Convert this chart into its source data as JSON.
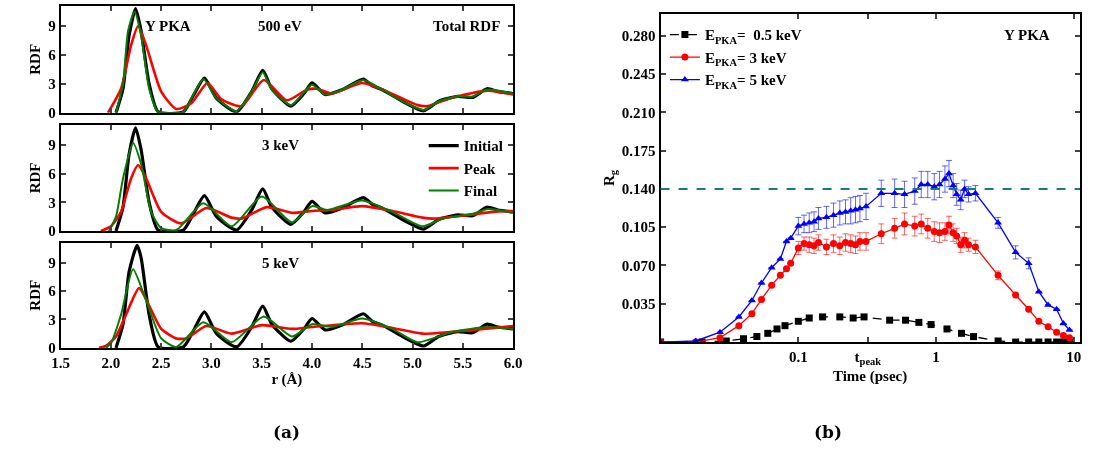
{
  "chart_data": [
    {
      "type": "line",
      "ylabel": "RDF",
      "xlim": [
        1.5,
        6.0
      ],
      "ylim": [
        0,
        11.1
      ],
      "tick_labels": "y",
      "xticks": [
        {
          "value": 1.5,
          "label": null
        },
        {
          "value": 2.0,
          "label": null
        },
        {
          "value": 2.5,
          "label": null
        },
        {
          "value": 3.0,
          "label": null
        },
        {
          "value": 3.5,
          "label": null
        },
        {
          "value": 4.0,
          "label": null
        },
        {
          "value": 4.5,
          "label": null
        },
        {
          "value": 5.0,
          "label": null
        },
        {
          "value": 5.5,
          "label": null
        },
        {
          "value": 6.0,
          "label": null
        }
      ],
      "yticks": [
        0,
        3,
        6,
        9
      ],
      "annotations": [
        "Y PKA",
        "500 eV",
        "Total RDF"
      ],
      "series": [
        {
          "color": "#000000",
          "x": [
            2.05,
            2.12,
            2.18,
            2.245,
            2.3,
            2.38,
            2.47,
            2.72,
            2.82,
            2.93,
            3.05,
            3.25,
            3.4,
            3.51,
            3.6,
            3.79,
            3.92,
            4.0,
            4.13,
            4.3,
            4.51,
            4.6,
            4.7,
            4.9,
            5.11,
            5.26,
            5.45,
            5.6,
            5.74,
            5.85,
            6.0
          ],
          "values": [
            0,
            2.5,
            8.0,
            10.8,
            8.5,
            3.0,
            0.1,
            0.1,
            1.8,
            3.6,
            1.5,
            0.1,
            2.2,
            4.4,
            2.5,
            0.7,
            2.0,
            3.1,
            1.9,
            2.4,
            3.5,
            2.8,
            2.4,
            1.2,
            0.2,
            1.2,
            1.7,
            1.6,
            2.5,
            2.2,
            2.0
          ]
        },
        {
          "color": "#ff0000",
          "x": [
            1.97,
            2.1,
            2.2,
            2.27,
            2.35,
            2.5,
            2.65,
            2.8,
            2.96,
            3.1,
            3.3,
            3.52,
            3.75,
            3.95,
            4.05,
            4.2,
            4.5,
            4.75,
            5.05,
            5.15,
            5.4,
            5.75,
            6.0
          ],
          "values": [
            0,
            2.5,
            7.0,
            9.0,
            7.0,
            2.2,
            0.4,
            1.0,
            3.1,
            1.4,
            0.7,
            3.4,
            1.3,
            2.4,
            2.5,
            2.0,
            3.1,
            2.2,
            0.8,
            0.7,
            1.6,
            2.3,
            1.9
          ]
        },
        {
          "color": "#008000",
          "x": [
            2.05,
            2.12,
            2.17,
            2.235,
            2.3,
            2.38,
            2.47,
            2.72,
            2.82,
            2.92,
            3.05,
            3.25,
            3.4,
            3.51,
            3.6,
            3.79,
            3.92,
            4.0,
            4.13,
            4.3,
            4.51,
            4.7,
            4.9,
            5.11,
            5.26,
            5.45,
            5.6,
            5.74,
            6.0
          ],
          "values": [
            0,
            3.0,
            8.5,
            10.5,
            8.0,
            2.5,
            0.1,
            0.1,
            1.9,
            3.5,
            1.5,
            0.2,
            2.2,
            4.2,
            2.4,
            0.8,
            2.1,
            2.9,
            1.9,
            2.4,
            3.4,
            2.4,
            1.2,
            0.3,
            1.2,
            1.7,
            1.7,
            2.4,
            2.0
          ]
        }
      ]
    },
    {
      "type": "line",
      "ylabel": "RDF",
      "xlim": [
        1.5,
        6.0
      ],
      "ylim": [
        0,
        11.1
      ],
      "tick_labels": "y",
      "legend": "top right",
      "xticks": [
        {
          "value": 1.5,
          "label": null
        },
        {
          "value": 2.0,
          "label": null
        },
        {
          "value": 2.5,
          "label": null
        },
        {
          "value": 3.0,
          "label": null
        },
        {
          "value": 3.5,
          "label": null
        },
        {
          "value": 4.0,
          "label": null
        },
        {
          "value": 4.5,
          "label": null
        },
        {
          "value": 5.0,
          "label": null
        },
        {
          "value": 5.5,
          "label": null
        },
        {
          "value": 6.0,
          "label": null
        }
      ],
      "yticks": [
        0,
        3,
        6,
        9
      ],
      "annotations": [
        "3 keV"
      ],
      "series": [
        {
          "name": "Initial",
          "color": "#000000",
          "x": [
            2.05,
            2.12,
            2.18,
            2.245,
            2.3,
            2.38,
            2.47,
            2.72,
            2.82,
            2.93,
            3.05,
            3.25,
            3.4,
            3.51,
            3.6,
            3.79,
            3.92,
            4.0,
            4.13,
            4.3,
            4.51,
            4.6,
            4.7,
            4.9,
            5.11,
            5.26,
            5.45,
            5.6,
            5.74,
            5.85,
            6.0
          ],
          "values": [
            0,
            2.5,
            8.0,
            10.8,
            8.5,
            3.0,
            0.1,
            0.1,
            1.8,
            3.7,
            1.5,
            0.1,
            2.2,
            4.4,
            2.5,
            0.7,
            2.0,
            3.1,
            1.9,
            2.4,
            3.5,
            2.8,
            2.4,
            1.2,
            0.2,
            1.2,
            1.7,
            1.6,
            2.5,
            2.2,
            2.0
          ]
        },
        {
          "name": "Peak",
          "color": "#ff0000",
          "x": [
            1.9,
            2.0,
            2.1,
            2.2,
            2.27,
            2.35,
            2.5,
            2.7,
            2.95,
            3.2,
            3.3,
            3.55,
            3.8,
            4.0,
            4.2,
            4.5,
            4.8,
            5.1,
            5.2,
            5.5,
            5.8,
            6.0
          ],
          "values": [
            0,
            0.5,
            2.0,
            5.5,
            6.9,
            5.5,
            2.0,
            0.8,
            2.4,
            1.4,
            1.3,
            2.5,
            1.9,
            2.1,
            2.2,
            2.6,
            2.1,
            1.4,
            1.3,
            1.6,
            2.0,
            2.1
          ]
        },
        {
          "name": "Final",
          "color": "#008000",
          "x": [
            1.98,
            2.05,
            2.12,
            2.22,
            2.3,
            2.4,
            2.5,
            2.65,
            2.92,
            3.2,
            3.5,
            3.8,
            4.0,
            4.15,
            4.5,
            4.8,
            5.1,
            5.3,
            5.6,
            5.75,
            6.0
          ],
          "values": [
            0,
            1.5,
            5.5,
            9.2,
            7.0,
            2.0,
            0.3,
            0.1,
            2.9,
            0.5,
            3.6,
            0.9,
            2.6,
            2.2,
            3.2,
            2.0,
            0.5,
            1.3,
            1.8,
            2.3,
            1.9
          ]
        }
      ]
    },
    {
      "type": "line",
      "ylabel": "RDF",
      "xlabel": "r (Å)",
      "xlim": [
        1.5,
        6.0
      ],
      "ylim": [
        0,
        11.1
      ],
      "xticks": [
        1.5,
        {
          "value": 2.0,
          "label": "2.0"
        },
        2.5,
        {
          "value": 3.0,
          "label": "3.0"
        },
        3.5,
        {
          "value": 4.0,
          "label": "4.0"
        },
        4.5,
        {
          "value": 5.0,
          "label": "5.0"
        },
        5.5,
        {
          "value": 6.0,
          "label": "6.0"
        }
      ],
      "yticks": [
        0,
        3,
        6,
        9
      ],
      "annotations": [
        "5 keV",
        "(a)"
      ],
      "series": [
        {
          "color": "#000000",
          "x": [
            2.05,
            2.12,
            2.18,
            2.26,
            2.3,
            2.38,
            2.47,
            2.72,
            2.82,
            2.93,
            3.05,
            3.25,
            3.4,
            3.51,
            3.6,
            3.79,
            3.92,
            4.0,
            4.13,
            4.3,
            4.51,
            4.6,
            4.7,
            4.9,
            5.11,
            5.26,
            5.45,
            5.6,
            5.74,
            5.85,
            6.0
          ],
          "values": [
            0,
            2.5,
            8.0,
            10.8,
            9.5,
            3.5,
            0.1,
            0.1,
            1.8,
            3.8,
            1.5,
            0.1,
            2.2,
            4.4,
            2.5,
            0.7,
            2.0,
            3.1,
            1.9,
            2.4,
            3.6,
            2.8,
            2.4,
            1.2,
            0.2,
            1.2,
            1.7,
            1.6,
            2.5,
            2.2,
            2.0
          ]
        },
        {
          "color": "#ff0000",
          "x": [
            1.88,
            1.95,
            2.05,
            2.15,
            2.28,
            2.4,
            2.5,
            2.65,
            2.75,
            2.95,
            3.2,
            3.5,
            3.8,
            4.0,
            4.5,
            4.8,
            5.1,
            5.5,
            6.0
          ],
          "values": [
            0,
            0.2,
            1.2,
            3.5,
            6.3,
            4.0,
            2.0,
            1.0,
            1.0,
            2.3,
            1.5,
            2.4,
            2.0,
            2.2,
            2.6,
            2.1,
            1.5,
            1.8,
            2.3
          ]
        },
        {
          "color": "#008000",
          "x": [
            1.95,
            2.0,
            2.1,
            2.22,
            2.35,
            2.5,
            2.65,
            2.92,
            3.2,
            3.52,
            3.8,
            4.0,
            4.2,
            4.5,
            4.8,
            5.05,
            5.4,
            5.75,
            6.0
          ],
          "values": [
            0,
            0.5,
            3.5,
            8.3,
            5.0,
            1.0,
            0.1,
            2.7,
            0.6,
            3.3,
            1.2,
            2.5,
            2.2,
            3.1,
            2.0,
            0.6,
            1.7,
            2.2,
            2.0
          ]
        }
      ]
    },
    {
      "type": "line",
      "xlabel": "Time (psec)",
      "ylabel": "R$_{g}$",
      "log": "x",
      "xlim": [
        0.01,
        11
      ],
      "ylim": [
        0,
        0.3
      ],
      "legend": "top left",
      "xticks": [
        0.1,
        {
          "value": 0.32,
          "label": "t$_{peak}$"
        },
        1,
        10
      ],
      "yticks": [
        {
          "value": 0.035,
          "label": "0.035"
        },
        {
          "value": 0.07,
          "label": "0.070"
        },
        {
          "value": 0.105,
          "label": "0.105"
        },
        {
          "value": 0.14,
          "label": "0.140"
        },
        {
          "value": 0.175,
          "label": "0.175"
        },
        {
          "value": 0.21,
          "label": "0.210"
        },
        {
          "value": 0.245,
          "label": "0.245"
        },
        {
          "value": 0.28,
          "label": "0.280"
        }
      ],
      "ref_lines": [
        {
          "axis": "y",
          "value": 0.14,
          "color": "#1a7a7a",
          "line_style": "dashed"
        }
      ],
      "annotations": [
        "Y PKA",
        "(b)"
      ],
      "x": [
        0.01,
        0.018,
        0.027,
        0.037,
        0.046,
        0.054,
        0.064,
        0.074,
        0.082,
        0.088,
        0.1,
        0.11,
        0.12,
        0.13,
        0.14,
        0.16,
        0.18,
        0.2,
        0.22,
        0.24,
        0.26,
        0.28,
        0.31,
        0.4,
        0.5,
        0.59,
        0.7,
        0.78,
        0.87,
        0.97,
        1.06,
        1.16,
        1.24,
        1.33,
        1.41,
        1.51,
        1.61,
        1.72,
        1.93,
        2.82,
        3.78,
        4.7,
        5.57,
        6.5,
        7.5,
        8.4,
        9.3
      ],
      "series": [
        {
          "name": "E$_{PKA}$=  0.5 keV",
          "color": "#000000",
          "marker": "square",
          "line_style": "dashed",
          "x": [
            0.01,
            0.02,
            0.03,
            0.04,
            0.05,
            0.06,
            0.07,
            0.08,
            0.1,
            0.12,
            0.15,
            0.2,
            0.25,
            0.3,
            0.46,
            0.6,
            0.75,
            0.92,
            1.2,
            1.53,
            1.87,
            2.82,
            3.78,
            4.7,
            5.57,
            6.5,
            7.5,
            8.4,
            9.3
          ],
          "values": [
            0,
            0,
            0.001,
            0.003,
            0.005,
            0.008,
            0.012,
            0.015,
            0.019,
            0.022,
            0.023,
            0.023,
            0.022,
            0.023,
            0.02,
            0.02,
            0.018,
            0.016,
            0.012,
            0.008,
            0.005,
            0.001,
            0,
            0,
            0,
            0,
            0,
            0,
            0
          ]
        },
        {
          "name": "E$_{PKA}$= 3 keV",
          "color": "#ff0000",
          "marker": "circle",
          "values": [
            0,
            0,
            0.004,
            0.015,
            0.026,
            0.039,
            0.052,
            0.061,
            0.067,
            0.072,
            0.086,
            0.09,
            0.089,
            0.088,
            0.091,
            0.087,
            0.09,
            0.088,
            0.091,
            0.09,
            0.089,
            0.092,
            0.092,
            0.099,
            0.104,
            0.108,
            0.106,
            0.108,
            0.104,
            0.101,
            0.1,
            0.101,
            0.107,
            0.1,
            0.097,
            0.089,
            0.093,
            0.089,
            0.087,
            0.061,
            0.043,
            0.03,
            0.019,
            0.014,
            0.009,
            0.006,
            0.004
          ],
          "errors": [
            null,
            null,
            null,
            null,
            null,
            null,
            null,
            null,
            null,
            null,
            0.006,
            0.006,
            0.007,
            0.007,
            0.007,
            0.007,
            0.008,
            0.008,
            0.008,
            0.008,
            0.008,
            0.008,
            0.008,
            0.009,
            0.009,
            0.01,
            0.009,
            0.009,
            0.009,
            0.009,
            0.009,
            0.008,
            0.008,
            0.008,
            0.007,
            0.007,
            0.007,
            0.006,
            0.006,
            0.004,
            null,
            null,
            null,
            null,
            null,
            null,
            null
          ]
        },
        {
          "name": "E$_{PKA}$= 5 keV",
          "color": "#0000ff",
          "marker": "triangle",
          "values": [
            0,
            0.001,
            0.009,
            0.023,
            0.038,
            0.054,
            0.068,
            0.076,
            0.092,
            0.095,
            0.106,
            0.108,
            0.109,
            0.11,
            0.113,
            0.114,
            0.116,
            0.118,
            0.119,
            0.12,
            0.121,
            0.122,
            0.124,
            0.136,
            0.136,
            0.135,
            0.138,
            0.144,
            0.144,
            0.142,
            0.144,
            0.149,
            0.154,
            0.143,
            0.135,
            0.13,
            0.14,
            0.135,
            0.136,
            0.109,
            0.082,
            0.072,
            0.046,
            0.034,
            0.03,
            0.017,
            0.011
          ],
          "errors": [
            null,
            null,
            null,
            null,
            null,
            null,
            null,
            null,
            null,
            null,
            0.008,
            0.008,
            0.009,
            0.009,
            0.01,
            0.01,
            0.011,
            0.011,
            0.011,
            0.012,
            0.012,
            0.012,
            0.012,
            0.012,
            0.013,
            0.012,
            0.012,
            0.012,
            0.012,
            0.012,
            0.012,
            0.012,
            0.012,
            0.011,
            0.01,
            0.009,
            0.008,
            0.007,
            0.007,
            0.005,
            0.006,
            0.005,
            null,
            null,
            null,
            null,
            null
          ]
        }
      ]
    }
  ]
}
